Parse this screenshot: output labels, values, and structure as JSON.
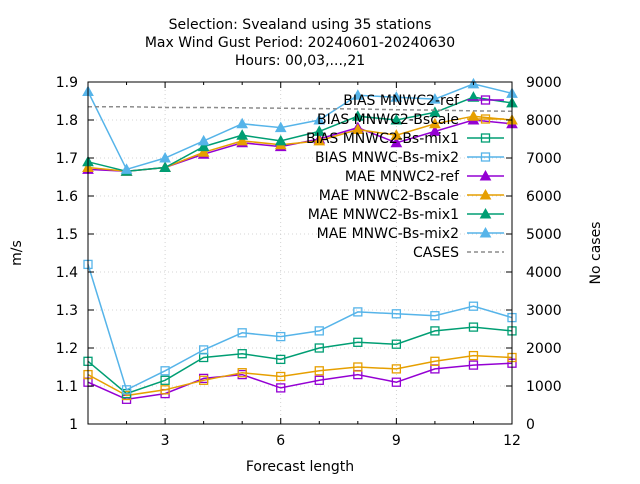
{
  "chart_data": {
    "type": "line",
    "title_lines": [
      "Selection: Svealand using    35 stations",
      "Max Wind Gust   Period: 20240601-20240630",
      "Hours: 00,03,...,21"
    ],
    "xlabel": "Forecast length",
    "ylabel": "m/s",
    "y2label": "No cases",
    "xlim": [
      1,
      12
    ],
    "ylim": [
      1,
      1.9
    ],
    "y2lim": [
      0,
      9000
    ],
    "xticks": [
      3,
      6,
      9,
      12
    ],
    "yticks": [
      1,
      1.1,
      1.2,
      1.3,
      1.4,
      1.5,
      1.6,
      1.7,
      1.8,
      1.9
    ],
    "y2ticks": [
      0,
      1000,
      2000,
      3000,
      4000,
      5000,
      6000,
      7000,
      8000,
      9000
    ],
    "legend_position": "top-right",
    "x": [
      1,
      2,
      3,
      4,
      5,
      6,
      7,
      8,
      9,
      10,
      11,
      12
    ],
    "series": [
      {
        "name": "BIAS MNWC2-ref",
        "color": "#9400d3",
        "marker": "square",
        "axis": "y",
        "values": [
          1.11,
          1.065,
          1.08,
          1.12,
          1.13,
          1.095,
          1.115,
          1.13,
          1.11,
          1.145,
          1.155,
          1.16
        ]
      },
      {
        "name": "BIAS MNWC2-Bscale",
        "color": "#e69f00",
        "marker": "square",
        "axis": "y",
        "values": [
          1.13,
          1.075,
          1.09,
          1.115,
          1.135,
          1.125,
          1.14,
          1.15,
          1.145,
          1.165,
          1.18,
          1.175
        ]
      },
      {
        "name": "BIAS MNWC2-Bs-mix1",
        "color": "#009e73",
        "marker": "square",
        "axis": "y",
        "values": [
          1.165,
          1.08,
          1.115,
          1.175,
          1.185,
          1.17,
          1.2,
          1.215,
          1.21,
          1.245,
          1.255,
          1.245
        ]
      },
      {
        "name": "BIAS MNWC-Bs-mix2",
        "color": "#56b4e9",
        "marker": "square",
        "axis": "y",
        "values": [
          1.42,
          1.09,
          1.14,
          1.195,
          1.24,
          1.23,
          1.245,
          1.295,
          1.29,
          1.285,
          1.31,
          1.28
        ]
      },
      {
        "name": "MAE MNWC2-ref",
        "color": "#9400d3",
        "marker": "triangle",
        "axis": "y",
        "values": [
          1.67,
          1.665,
          1.675,
          1.71,
          1.74,
          1.73,
          1.75,
          1.78,
          1.74,
          1.77,
          1.8,
          1.79
        ]
      },
      {
        "name": "MAE MNWC2-Bscale",
        "color": "#e69f00",
        "marker": "triangle",
        "axis": "y",
        "values": [
          1.675,
          1.665,
          1.675,
          1.715,
          1.745,
          1.735,
          1.745,
          1.775,
          1.76,
          1.79,
          1.81,
          1.8
        ]
      },
      {
        "name": "MAE MNWC2-Bs-mix1",
        "color": "#009e73",
        "marker": "triangle",
        "axis": "y",
        "values": [
          1.69,
          1.665,
          1.675,
          1.73,
          1.76,
          1.745,
          1.77,
          1.81,
          1.8,
          1.82,
          1.86,
          1.845
        ]
      },
      {
        "name": "MAE MNWC-Bs-mix2",
        "color": "#56b4e9",
        "marker": "triangle",
        "axis": "y",
        "values": [
          1.875,
          1.67,
          1.7,
          1.745,
          1.79,
          1.78,
          1.8,
          1.865,
          1.86,
          1.855,
          1.895,
          1.87
        ]
      },
      {
        "name": "CASES",
        "color": "#8c8c8c",
        "marker": "none",
        "dashed": true,
        "axis": "y2",
        "values": [
          8350,
          8350,
          8330,
          8330,
          8320,
          8310,
          8300,
          8290,
          8270,
          8260,
          8240,
          8230
        ]
      }
    ]
  }
}
